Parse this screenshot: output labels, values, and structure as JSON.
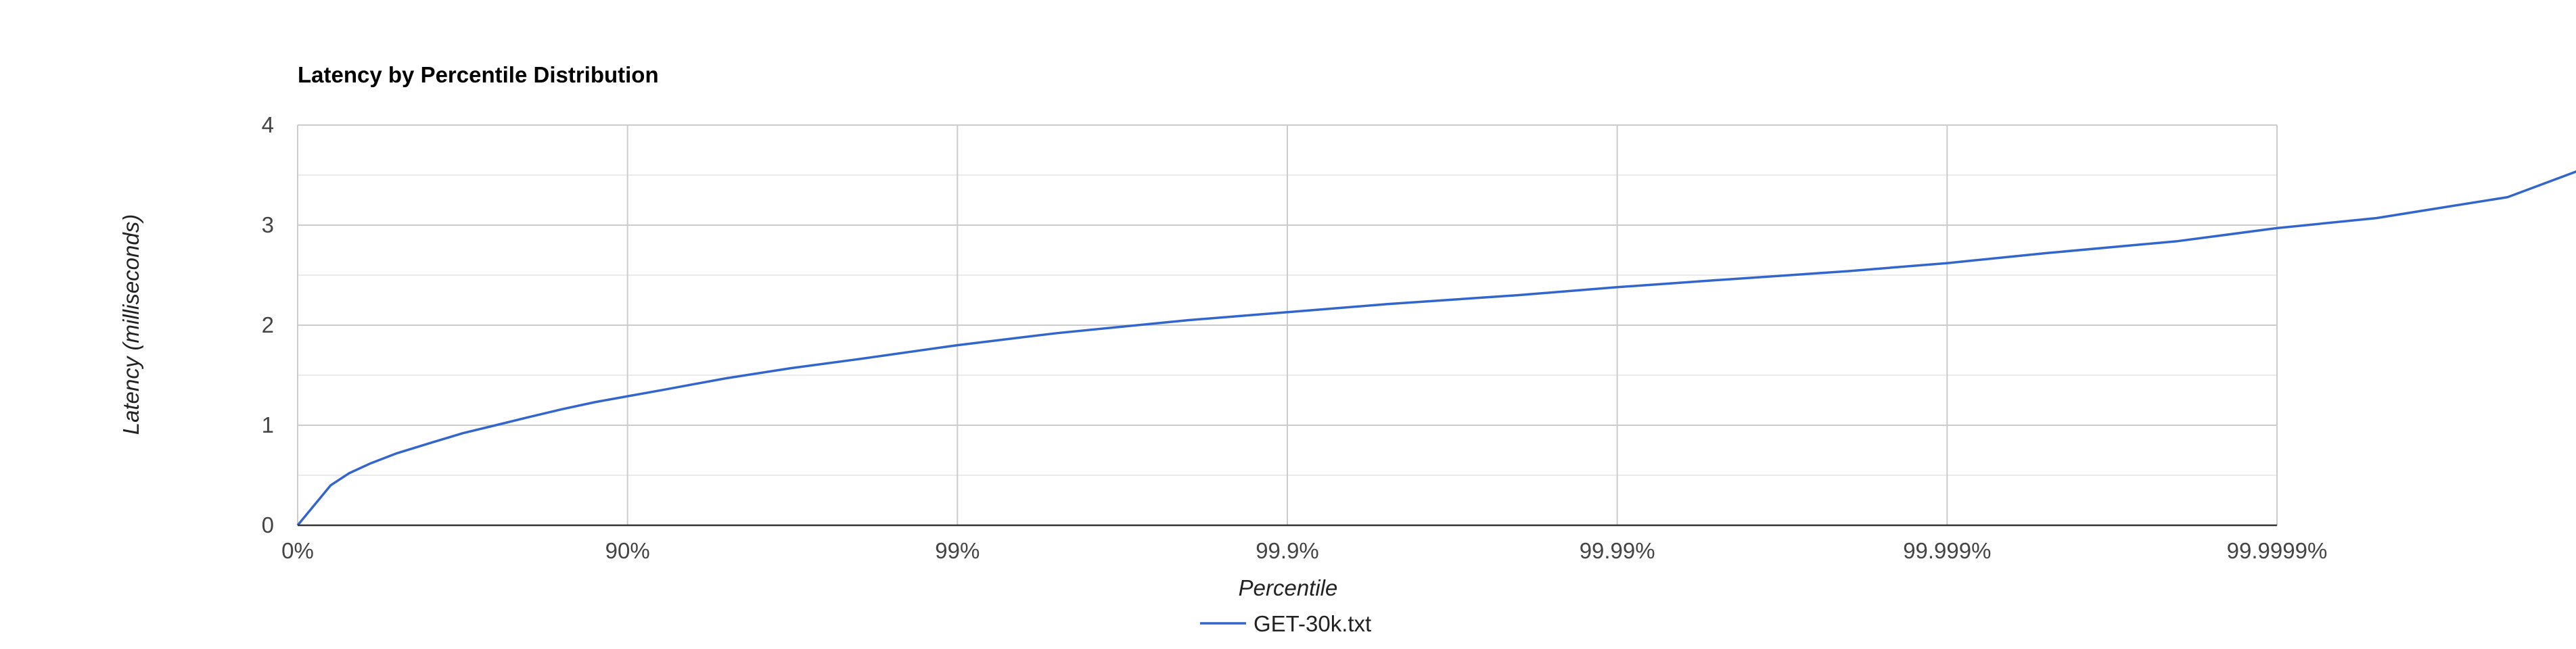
{
  "chart_data": {
    "type": "line",
    "title": "Latency by Percentile Distribution",
    "xlabel": "Percentile",
    "ylabel": "Latency (milliseconds)",
    "x_scale": "log(1/(1-percentile))",
    "x_ticks": [
      "0%",
      "90%",
      "99%",
      "99.9%",
      "99.99%",
      "99.999%",
      "99.9999%"
    ],
    "y_ticks": [
      "0",
      "1",
      "2",
      "3",
      "4"
    ],
    "ylim": [
      0,
      4
    ],
    "grid": true,
    "legend_position": "bottom",
    "series": [
      {
        "name": "GET-30k.txt",
        "color": "#3366cc",
        "points": [
          [
            "0%",
            0
          ],
          [
            "20.6%",
            0.4
          ],
          [
            "30.2%",
            0.52
          ],
          [
            "40%",
            0.62
          ],
          [
            "50%",
            0.72
          ],
          [
            "60.2%",
            0.82
          ],
          [
            "68.4%",
            0.92
          ],
          [
            "74.9%",
            1.0
          ],
          [
            "80%",
            1.08
          ],
          [
            "84.2%",
            1.16
          ],
          [
            "87.4%",
            1.23
          ],
          [
            "90%",
            1.29
          ],
          [
            "92.1%",
            1.35
          ],
          [
            "93.7%",
            1.41
          ],
          [
            "95%",
            1.47
          ],
          [
            "96.8%",
            1.57
          ],
          [
            "98%",
            1.66
          ],
          [
            "99%",
            1.8
          ],
          [
            "99.5%",
            1.92
          ],
          [
            "99.8%",
            2.05
          ],
          [
            "99.9%",
            2.13
          ],
          [
            "99.95%",
            2.21
          ],
          [
            "99.98%",
            2.3
          ],
          [
            "99.99%",
            2.38
          ],
          [
            "99.995%",
            2.45
          ],
          [
            "99.998%",
            2.54
          ],
          [
            "99.999%",
            2.62
          ],
          [
            "99.9995%",
            2.72
          ],
          [
            "99.9998%",
            2.84
          ],
          [
            "99.9999%",
            2.97
          ],
          [
            "99.99995%",
            3.07
          ],
          [
            "99.99998%",
            3.28
          ],
          [
            "99.99999%",
            3.65
          ],
          [
            "99.999995%",
            3.77
          ],
          [
            "99.999998%",
            3.77
          ],
          [
            "99.9999992%",
            4.0
          ]
        ]
      }
    ]
  }
}
